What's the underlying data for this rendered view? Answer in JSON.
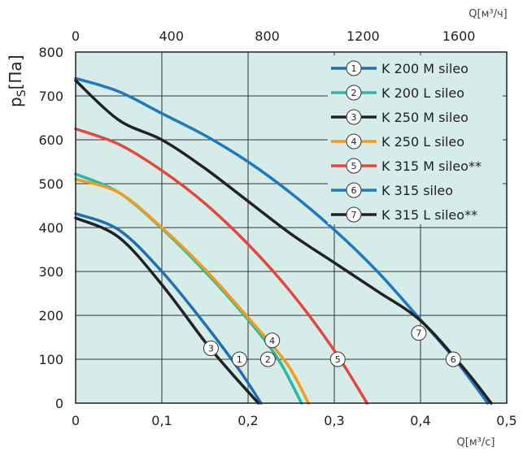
{
  "chart_data": {
    "type": "line",
    "ylabel_main": "p",
    "ylabel_sub": "S",
    "ylabel_unit": "[Па]",
    "xlabel_bottom": "Q[м³/с]",
    "xlabel_top": "Q[м³/ч]",
    "xlim": [
      0,
      0.5
    ],
    "ylim": [
      0,
      800
    ],
    "top_xlim": [
      0,
      1800
    ],
    "x_ticks": [
      0,
      0.1,
      0.2,
      0.3,
      0.4,
      0.5
    ],
    "x_tick_labels": [
      "0",
      "0,1",
      "0,2",
      "0,3",
      "0,4",
      "0,5"
    ],
    "y_ticks": [
      0,
      100,
      200,
      300,
      400,
      500,
      600,
      700,
      800
    ],
    "y_tick_labels": [
      "0",
      "100",
      "200",
      "300",
      "400",
      "500",
      "600",
      "700",
      "800"
    ],
    "top_ticks": [
      0,
      400,
      800,
      1200,
      1600
    ],
    "top_tick_labels": [
      "0",
      "400",
      "800",
      "1200",
      "1600"
    ],
    "grid": true,
    "legend_position": "top-right",
    "background_color": "#d6ece8",
    "series": [
      {
        "name": "K 200 M sileo",
        "marker": "1",
        "color": "#1f6fb5",
        "x": [
          0,
          0.05,
          0.1,
          0.15,
          0.19,
          0.215
        ],
        "y": [
          432,
          395,
          300,
          180,
          75,
          0
        ],
        "marker_x": 0.19,
        "marker_y": 100
      },
      {
        "name": "K 200 L sileo",
        "marker": "2",
        "color": "#2bb8a5",
        "x": [
          0,
          0.05,
          0.1,
          0.15,
          0.2,
          0.235,
          0.262
        ],
        "y": [
          522,
          480,
          398,
          300,
          190,
          100,
          0
        ],
        "marker_x": 0.223,
        "marker_y": 100
      },
      {
        "name": "K 250 M sileo",
        "marker": "3",
        "color": "#222222",
        "x": [
          0,
          0.05,
          0.1,
          0.15,
          0.18,
          0.212
        ],
        "y": [
          422,
          378,
          270,
          140,
          70,
          0
        ],
        "marker_x": 0.157,
        "marker_y": 125
      },
      {
        "name": "K 250 L sileo",
        "marker": "4",
        "color": "#f39a1f",
        "x": [
          0,
          0.05,
          0.1,
          0.15,
          0.2,
          0.245,
          0.27
        ],
        "y": [
          510,
          480,
          400,
          305,
          195,
          90,
          0
        ],
        "marker_x": 0.228,
        "marker_y": 143
      },
      {
        "name": "K 315 M sileo**",
        "marker": "5",
        "color": "#e5473c",
        "x": [
          0,
          0.05,
          0.1,
          0.15,
          0.2,
          0.25,
          0.3,
          0.338
        ],
        "y": [
          625,
          590,
          530,
          455,
          362,
          252,
          120,
          0
        ],
        "marker_x": 0.304,
        "marker_y": 100
      },
      {
        "name": "K 315 sileo",
        "marker": "6",
        "color": "#1f78c2",
        "x": [
          0,
          0.05,
          0.1,
          0.15,
          0.2,
          0.25,
          0.3,
          0.35,
          0.4,
          0.44,
          0.478
        ],
        "y": [
          740,
          710,
          660,
          610,
          550,
          478,
          395,
          300,
          190,
          100,
          0
        ],
        "marker_x": 0.438,
        "marker_y": 100
      },
      {
        "name": "K 315 L sileo**",
        "marker": "7",
        "color": "#222222",
        "x": [
          0,
          0.05,
          0.1,
          0.15,
          0.2,
          0.25,
          0.3,
          0.35,
          0.4,
          0.45,
          0.482
        ],
        "y": [
          735,
          645,
          600,
          535,
          460,
          385,
          320,
          255,
          188,
          80,
          0
        ],
        "marker_x": 0.398,
        "marker_y": 160
      }
    ]
  }
}
